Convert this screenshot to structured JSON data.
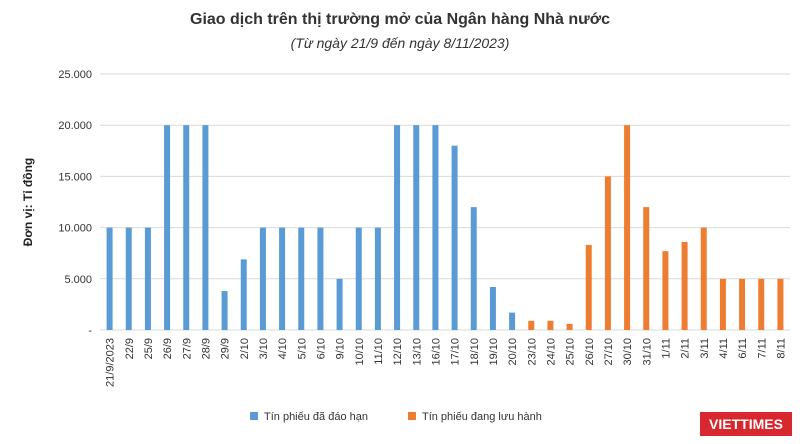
{
  "chart_data": {
    "type": "bar",
    "title": "Giao dịch trên thị trường mở của Ngân hàng Nhà nước",
    "subtitle": "(Từ ngày 21/9 đến ngày 8/11/2023)",
    "y_label": "Đơn vị: Tỉ đồng",
    "watermark": "VIETTIMES",
    "categories": [
      "21/9/2023",
      "22/9",
      "25/9",
      "26/9",
      "27/9",
      "28/9",
      "29/9",
      "2/10",
      "3/10",
      "4/10",
      "5/10",
      "6/10",
      "9/10",
      "10/10",
      "11/10",
      "12/10",
      "13/10",
      "16/10",
      "17/10",
      "18/10",
      "19/10",
      "20/10",
      "23/10",
      "24/10",
      "25/10",
      "26/10",
      "27/10",
      "30/10",
      "31/10",
      "1/11",
      "2/11",
      "3/11",
      "4/11",
      "6/11",
      "7/11",
      "8/11"
    ],
    "series": [
      {
        "name": "Tín phiếu đã đáo hạn",
        "color": "#5b9bd5",
        "values": [
          10000,
          10000,
          10000,
          20000,
          20000,
          20000,
          3800,
          6900,
          10000,
          10000,
          10000,
          10000,
          5000,
          10000,
          10000,
          20000,
          20000,
          20000,
          18000,
          12000,
          4200,
          1700,
          null,
          null,
          null,
          null,
          null,
          null,
          null,
          null,
          null,
          null,
          null,
          null,
          null,
          null
        ]
      },
      {
        "name": "Tín phiếu đang lưu hành",
        "color": "#ed7d31",
        "values": [
          null,
          null,
          null,
          null,
          null,
          null,
          null,
          null,
          null,
          null,
          null,
          null,
          null,
          null,
          null,
          null,
          null,
          null,
          null,
          null,
          null,
          null,
          900,
          900,
          600,
          8300,
          15000,
          20000,
          12000,
          7700,
          8600,
          10000,
          5000,
          5000,
          5000,
          5000
        ]
      }
    ],
    "ylim": [
      0,
      25000
    ],
    "yticks": [
      {
        "value": 0,
        "label": "-"
      },
      {
        "value": 5000,
        "label": "5.000"
      },
      {
        "value": 10000,
        "label": "10.000"
      },
      {
        "value": 15000,
        "label": "15.000"
      },
      {
        "value": 20000,
        "label": "20.000"
      },
      {
        "value": 25000,
        "label": "25.000"
      }
    ],
    "grid": true,
    "legend": "bottom"
  }
}
